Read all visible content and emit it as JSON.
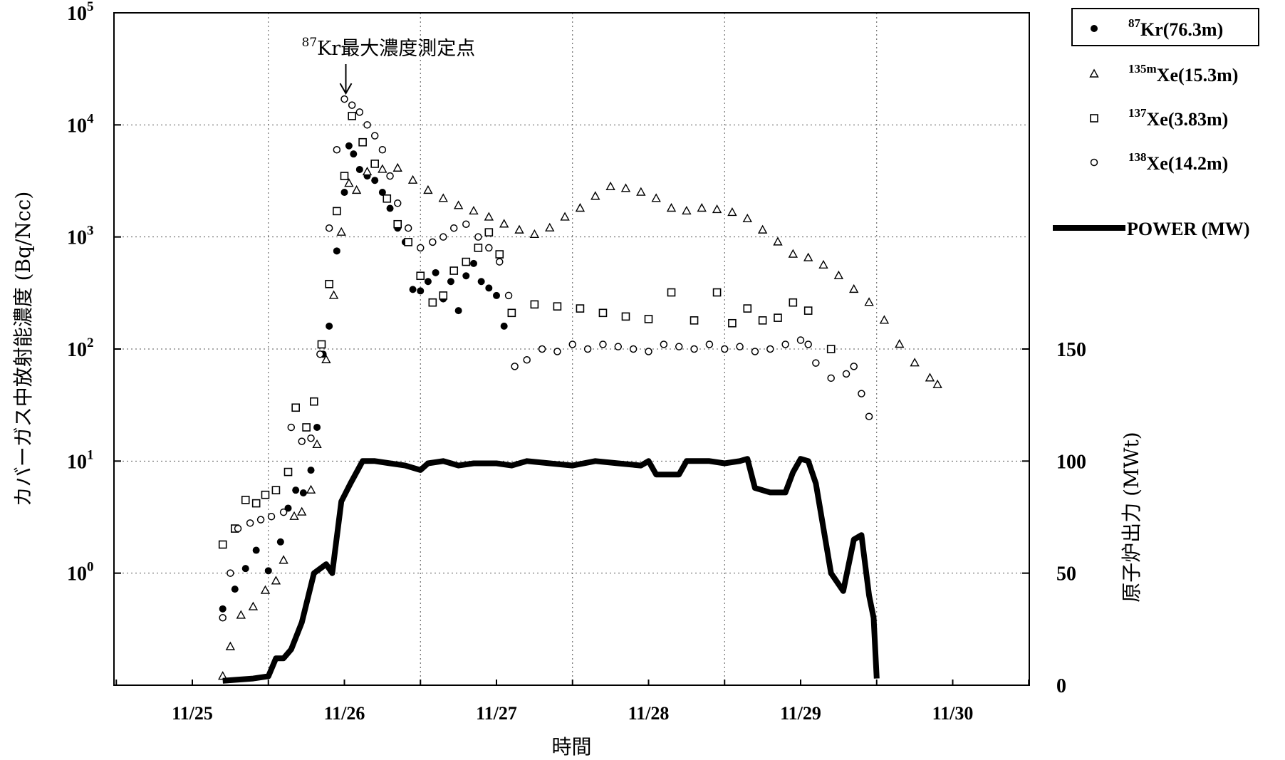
{
  "chart_data": {
    "type": "scatter",
    "x_ticks": [
      "11/25",
      "11/26",
      "11/27",
      "11/28",
      "11/29",
      "11/30"
    ],
    "x_range": [
      24.5,
      30.5
    ],
    "xlabel": "時間",
    "ylabel_left": "カバーガス中放射能濃度 (Bq/Ncc)",
    "ylabel_right": "原子炉出力 (MWt)",
    "y_left": {
      "scale": "log",
      "min": 0.1,
      "max": 100000,
      "ticks": [
        {
          "base": "10",
          "exp": "0"
        },
        {
          "base": "10",
          "exp": "1"
        },
        {
          "base": "10",
          "exp": "2"
        },
        {
          "base": "10",
          "exp": "3"
        },
        {
          "base": "10",
          "exp": "4"
        },
        {
          "base": "10",
          "exp": "5"
        }
      ]
    },
    "y_right": {
      "scale": "linear",
      "min": 0,
      "max": 300,
      "ticks": [
        "0",
        "50",
        "100",
        "150"
      ]
    },
    "grid": true,
    "legend": {
      "position": "right",
      "items": [
        {
          "sup": "87",
          "text": "Kr(76.3m)",
          "marker": "filled-circle",
          "boxed": true
        },
        {
          "sup": "135m",
          "text": "Xe(15.3m)",
          "marker": "triangle"
        },
        {
          "sup": "137",
          "text": "Xe(3.83m)",
          "marker": "square"
        },
        {
          "sup": "138",
          "text": "Xe(14.2m)",
          "marker": "circle"
        },
        {
          "sup": "",
          "text": "POWER (MW)",
          "marker": "thick-line"
        }
      ]
    },
    "annotation": {
      "sup": "87",
      "text": "Kr最大濃度測定点",
      "x": 26.0,
      "y": 17000
    },
    "series": [
      {
        "name": "87Kr(76.3m)",
        "axis": "left",
        "marker": "filled-circle",
        "points": [
          [
            25.2,
            0.48
          ],
          [
            25.28,
            0.72
          ],
          [
            25.35,
            1.1
          ],
          [
            25.42,
            1.6
          ],
          [
            25.5,
            1.05
          ],
          [
            25.58,
            1.9
          ],
          [
            25.63,
            3.8
          ],
          [
            25.68,
            5.5
          ],
          [
            25.73,
            5.2
          ],
          [
            25.78,
            8.3
          ],
          [
            25.82,
            20
          ],
          [
            25.86,
            90
          ],
          [
            25.9,
            160
          ],
          [
            25.95,
            750
          ],
          [
            26.0,
            2500
          ],
          [
            26.03,
            6500
          ],
          [
            26.06,
            5500
          ],
          [
            26.1,
            4000
          ],
          [
            26.15,
            3500
          ],
          [
            26.2,
            3200
          ],
          [
            26.25,
            2500
          ],
          [
            26.3,
            1800
          ],
          [
            26.35,
            1200
          ],
          [
            26.4,
            900
          ],
          [
            26.45,
            340
          ],
          [
            26.5,
            330
          ],
          [
            26.55,
            400
          ],
          [
            26.6,
            480
          ],
          [
            26.65,
            280
          ],
          [
            26.7,
            400
          ],
          [
            26.75,
            220
          ],
          [
            26.8,
            450
          ],
          [
            26.85,
            580
          ],
          [
            26.9,
            400
          ],
          [
            26.95,
            350
          ],
          [
            27.0,
            300
          ],
          [
            27.05,
            160
          ]
        ]
      },
      {
        "name": "135mXe(15.3m)",
        "axis": "left",
        "marker": "triangle",
        "points": [
          [
            25.2,
            0.12
          ],
          [
            25.25,
            0.22
          ],
          [
            25.32,
            0.42
          ],
          [
            25.4,
            0.5
          ],
          [
            25.48,
            0.7
          ],
          [
            25.55,
            0.85
          ],
          [
            25.6,
            1.3
          ],
          [
            25.67,
            3.2
          ],
          [
            25.72,
            3.5
          ],
          [
            25.78,
            5.5
          ],
          [
            25.82,
            14
          ],
          [
            25.88,
            80
          ],
          [
            25.93,
            300
          ],
          [
            25.98,
            1100
          ],
          [
            26.03,
            3000
          ],
          [
            26.08,
            2600
          ],
          [
            26.15,
            3800
          ],
          [
            26.25,
            4000
          ],
          [
            26.35,
            4100
          ],
          [
            26.45,
            3200
          ],
          [
            26.55,
            2600
          ],
          [
            26.65,
            2200
          ],
          [
            26.75,
            1900
          ],
          [
            26.85,
            1700
          ],
          [
            26.95,
            1500
          ],
          [
            27.05,
            1300
          ],
          [
            27.15,
            1150
          ],
          [
            27.25,
            1050
          ],
          [
            27.35,
            1200
          ],
          [
            27.45,
            1500
          ],
          [
            27.55,
            1800
          ],
          [
            27.65,
            2300
          ],
          [
            27.75,
            2800
          ],
          [
            27.85,
            2700
          ],
          [
            27.95,
            2500
          ],
          [
            28.05,
            2200
          ],
          [
            28.15,
            1800
          ],
          [
            28.25,
            1700
          ],
          [
            28.35,
            1800
          ],
          [
            28.45,
            1750
          ],
          [
            28.55,
            1650
          ],
          [
            28.65,
            1450
          ],
          [
            28.75,
            1150
          ],
          [
            28.85,
            900
          ],
          [
            28.95,
            700
          ],
          [
            29.05,
            650
          ],
          [
            29.15,
            560
          ],
          [
            29.25,
            450
          ],
          [
            29.35,
            340
          ],
          [
            29.45,
            260
          ],
          [
            29.55,
            180
          ],
          [
            29.65,
            110
          ],
          [
            29.75,
            75
          ],
          [
            29.85,
            55
          ],
          [
            29.9,
            48
          ]
        ]
      },
      {
        "name": "137Xe(3.83m)",
        "axis": "left",
        "marker": "square",
        "points": [
          [
            25.2,
            1.8
          ],
          [
            25.28,
            2.5
          ],
          [
            25.35,
            4.5
          ],
          [
            25.42,
            4.2
          ],
          [
            25.48,
            5.0
          ],
          [
            25.55,
            5.5
          ],
          [
            25.63,
            8.0
          ],
          [
            25.68,
            30
          ],
          [
            25.75,
            20
          ],
          [
            25.8,
            34
          ],
          [
            25.85,
            110
          ],
          [
            25.9,
            380
          ],
          [
            25.95,
            1700
          ],
          [
            26.0,
            3500
          ],
          [
            26.05,
            12000
          ],
          [
            26.12,
            7000
          ],
          [
            26.2,
            4500
          ],
          [
            26.28,
            2200
          ],
          [
            26.35,
            1300
          ],
          [
            26.42,
            900
          ],
          [
            26.5,
            450
          ],
          [
            26.58,
            260
          ],
          [
            26.65,
            300
          ],
          [
            26.72,
            500
          ],
          [
            26.8,
            600
          ],
          [
            26.88,
            800
          ],
          [
            26.95,
            1100
          ],
          [
            27.02,
            700
          ],
          [
            27.1,
            210
          ],
          [
            27.25,
            250
          ],
          [
            27.4,
            240
          ],
          [
            27.55,
            230
          ],
          [
            27.7,
            210
          ],
          [
            27.85,
            195
          ],
          [
            28.0,
            185
          ],
          [
            28.15,
            320
          ],
          [
            28.3,
            180
          ],
          [
            28.45,
            320
          ],
          [
            28.55,
            170
          ],
          [
            28.65,
            230
          ],
          [
            28.75,
            180
          ],
          [
            28.85,
            190
          ],
          [
            28.95,
            260
          ],
          [
            29.05,
            220
          ],
          [
            29.2,
            100
          ]
        ]
      },
      {
        "name": "138Xe(14.2m)",
        "axis": "left",
        "marker": "circle",
        "points": [
          [
            25.2,
            0.4
          ],
          [
            25.25,
            1.0
          ],
          [
            25.3,
            2.5
          ],
          [
            25.38,
            2.8
          ],
          [
            25.45,
            3.0
          ],
          [
            25.52,
            3.2
          ],
          [
            25.6,
            3.5
          ],
          [
            25.65,
            20
          ],
          [
            25.72,
            15
          ],
          [
            25.78,
            16
          ],
          [
            25.84,
            90
          ],
          [
            25.9,
            1200
          ],
          [
            25.95,
            6000
          ],
          [
            26.0,
            17000
          ],
          [
            26.05,
            15000
          ],
          [
            26.1,
            13000
          ],
          [
            26.15,
            10000
          ],
          [
            26.2,
            8000
          ],
          [
            26.25,
            6000
          ],
          [
            26.3,
            3500
          ],
          [
            26.35,
            2000
          ],
          [
            26.42,
            1200
          ],
          [
            26.5,
            800
          ],
          [
            26.58,
            900
          ],
          [
            26.65,
            1000
          ],
          [
            26.72,
            1200
          ],
          [
            26.8,
            1300
          ],
          [
            26.88,
            1000
          ],
          [
            26.95,
            800
          ],
          [
            27.02,
            600
          ],
          [
            27.08,
            300
          ],
          [
            27.12,
            70
          ],
          [
            27.2,
            80
          ],
          [
            27.3,
            100
          ],
          [
            27.4,
            95
          ],
          [
            27.5,
            110
          ],
          [
            27.6,
            100
          ],
          [
            27.7,
            110
          ],
          [
            27.8,
            105
          ],
          [
            27.9,
            100
          ],
          [
            28.0,
            95
          ],
          [
            28.1,
            110
          ],
          [
            28.2,
            105
          ],
          [
            28.3,
            100
          ],
          [
            28.4,
            110
          ],
          [
            28.5,
            100
          ],
          [
            28.6,
            105
          ],
          [
            28.7,
            95
          ],
          [
            28.8,
            100
          ],
          [
            28.9,
            110
          ],
          [
            29.0,
            120
          ],
          [
            29.05,
            110
          ],
          [
            29.1,
            75
          ],
          [
            29.2,
            55
          ],
          [
            29.3,
            60
          ],
          [
            29.35,
            70
          ],
          [
            29.4,
            40
          ],
          [
            29.45,
            25
          ]
        ]
      },
      {
        "name": "POWER (MW)",
        "axis": "right",
        "marker": "thick-line",
        "points": [
          [
            25.2,
            2
          ],
          [
            25.4,
            3
          ],
          [
            25.5,
            4
          ],
          [
            25.55,
            12
          ],
          [
            25.6,
            12
          ],
          [
            25.65,
            16
          ],
          [
            25.72,
            28
          ],
          [
            25.8,
            50
          ],
          [
            25.88,
            54
          ],
          [
            25.92,
            50
          ],
          [
            25.98,
            82
          ],
          [
            26.04,
            90
          ],
          [
            26.12,
            100
          ],
          [
            26.2,
            100
          ],
          [
            26.3,
            99
          ],
          [
            26.4,
            98
          ],
          [
            26.5,
            96
          ],
          [
            26.55,
            99
          ],
          [
            26.65,
            100
          ],
          [
            26.75,
            98
          ],
          [
            26.85,
            99
          ],
          [
            27.0,
            99
          ],
          [
            27.1,
            98
          ],
          [
            27.2,
            100
          ],
          [
            27.35,
            99
          ],
          [
            27.5,
            98
          ],
          [
            27.65,
            100
          ],
          [
            27.8,
            99
          ],
          [
            27.95,
            98
          ],
          [
            28.0,
            100
          ],
          [
            28.05,
            94
          ],
          [
            28.2,
            94
          ],
          [
            28.25,
            100
          ],
          [
            28.4,
            100
          ],
          [
            28.5,
            99
          ],
          [
            28.6,
            100
          ],
          [
            28.65,
            101
          ],
          [
            28.7,
            88
          ],
          [
            28.8,
            86
          ],
          [
            28.9,
            86
          ],
          [
            28.95,
            95
          ],
          [
            29.0,
            101
          ],
          [
            29.05,
            100
          ],
          [
            29.1,
            90
          ],
          [
            29.2,
            50
          ],
          [
            29.28,
            42
          ],
          [
            29.35,
            65
          ],
          [
            29.4,
            67
          ],
          [
            29.45,
            40
          ],
          [
            29.48,
            30
          ],
          [
            29.5,
            3
          ]
        ]
      }
    ]
  }
}
